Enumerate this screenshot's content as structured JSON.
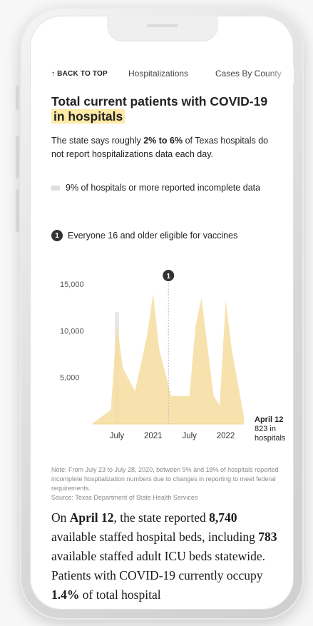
{
  "nav": {
    "back_to_top": "↑ BACK TO TOP",
    "items": [
      "Hospitalizations",
      "Cases By County"
    ]
  },
  "title": {
    "line1": "Total current patients with COVID-19",
    "line2": "in hospitals"
  },
  "subtitle": {
    "before": "The state says roughly ",
    "bold": "2% to 6%",
    "after": " of Texas hospitals do not report hospitalizations data each day."
  },
  "legend": {
    "incomplete": "9% of hospitals or more reported incomplete data",
    "event_number": "1",
    "event_label": "Everyone 16 and older eligible for vaccines"
  },
  "chart_data": {
    "type": "area",
    "y_ticks": [
      "15,000",
      "10,000",
      "5,000"
    ],
    "x_ticks": [
      "July",
      "2021",
      "July",
      "2022"
    ],
    "ylim": [
      0,
      17000
    ],
    "x": [
      "2020-03",
      "2020-06",
      "2020-07",
      "2020-08",
      "2020-10",
      "2020-12",
      "2021-01",
      "2021-02",
      "2021-04",
      "2021-07",
      "2021-08",
      "2021-09",
      "2021-11",
      "2021-12",
      "2022-01",
      "2022-02",
      "2022-04"
    ],
    "values": [
      100,
      1500,
      10800,
      6000,
      3500,
      9500,
      14000,
      8000,
      3000,
      3000,
      10500,
      13500,
      3000,
      2000,
      13200,
      8000,
      823
    ],
    "event_marker": {
      "label": "1",
      "date": "2021-03-29"
    },
    "last_label": {
      "date": "April 12",
      "value": "823 in",
      "unit": "hospitals"
    },
    "colors": {
      "area": "#f6ddA0",
      "shade": "#e8e8e8"
    }
  },
  "note": {
    "text": "Note: From July 23 to July 28, 2020, between 9% and 18% of hospitals reported incomplete hospitalization numbers due to changes in reporting to meet federal requirements.",
    "source": "Source: Texas Department of State Health Services"
  },
  "body": {
    "p1": "On ",
    "date": "April 12",
    "p2": ", the state reported ",
    "beds": "8,740",
    "p3": " available staffed hospital beds, including ",
    "icu": "783",
    "p4": " available staffed adult ICU beds statewide. Patients with COVID-19 currently occupy ",
    "pct": "1.4%",
    "p5": " of total hospital"
  }
}
